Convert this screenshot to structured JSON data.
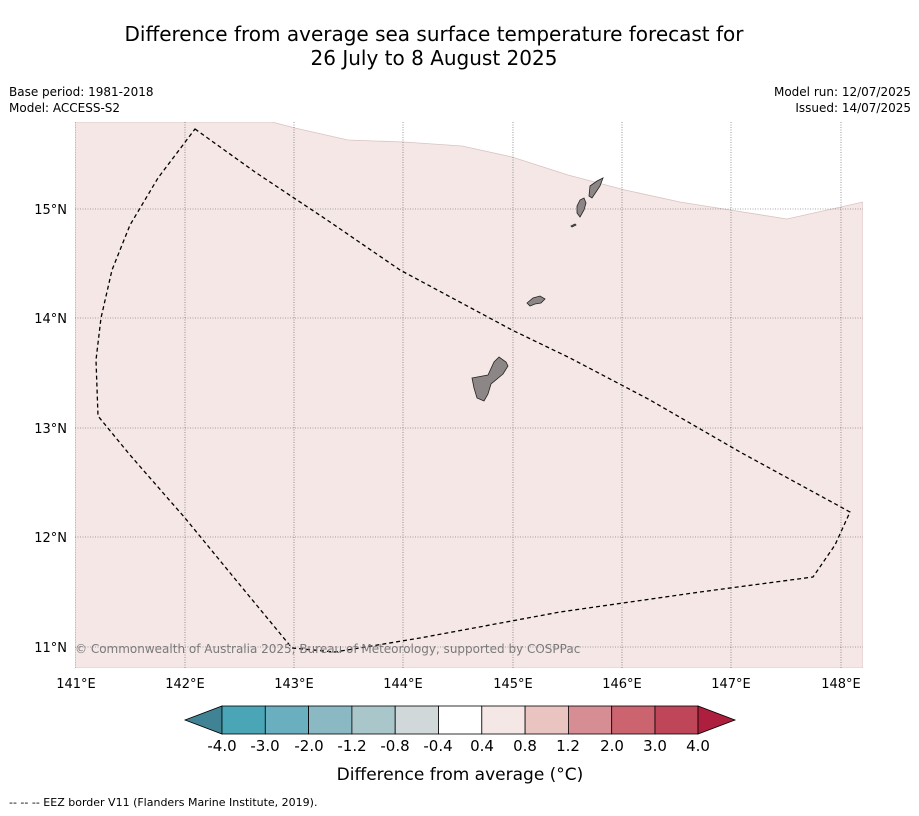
{
  "title_line1": "Difference from average sea surface temperature forecast for",
  "title_line2": "26 July to 8 August 2025",
  "meta": {
    "base_period": "Base period: 1981-2018",
    "model": "Model: ACCESS-S2",
    "model_run": "Model run: 12/07/2025",
    "issued": "Issued: 14/07/2025"
  },
  "map": {
    "lat_labels": [
      "15°N",
      "14°N",
      "13°N",
      "12°N",
      "11°N"
    ],
    "lon_labels": [
      "141°E",
      "142°E",
      "143°E",
      "144°E",
      "145°E",
      "146°E",
      "147°E",
      "148°E"
    ],
    "copyright": "© Commonwealth of Australia 2025, Bureau of Meteorology, supported by COSPPac",
    "anomaly_fill_color": "#f5e7e6",
    "land_color": "#8c8686",
    "islands": [
      "Guam",
      "Rota",
      "Tinian",
      "Saipan"
    ]
  },
  "colorbar": {
    "ticks": [
      "-4.0",
      "-3.0",
      "-2.0",
      "-1.2",
      "-0.8",
      "-0.4",
      "0.4",
      "0.8",
      "1.2",
      "2.0",
      "3.0",
      "4.0"
    ],
    "colors": [
      "#3f8394",
      "#4aa6b6",
      "#6aafc0",
      "#8ab8c3",
      "#a9c6ca",
      "#d0d8d9",
      "#ffffff",
      "#f5e7e6",
      "#e9c4c1",
      "#d68d93",
      "#cc6470",
      "#bf4658",
      "#ae1f3f"
    ],
    "label": "Difference from average (°C)"
  },
  "footnote": "--  --  -- EEZ border V11 (Flanders Marine Institute, 2019)."
}
